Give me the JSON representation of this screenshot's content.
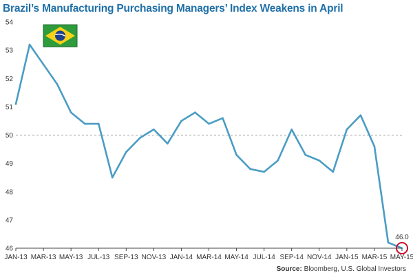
{
  "chart_data": {
    "type": "line",
    "title": "Brazil’s Manufacturing Purchasing Managers’ Index Weakens in April",
    "xlabel": "",
    "ylabel": "",
    "ylim": [
      46,
      54
    ],
    "yticks": [
      46,
      47,
      48,
      49,
      50,
      51,
      52,
      53,
      54
    ],
    "x": [
      "JAN-13",
      "FEB-13",
      "MAR-13",
      "APR-13",
      "MAY-13",
      "JUN-13",
      "JUL-13",
      "AUG-13",
      "SEP-13",
      "OCT-13",
      "NOV-13",
      "DEC-13",
      "JAN-14",
      "FEB-14",
      "MAR-14",
      "APR-14",
      "MAY-14",
      "JUN-14",
      "JUL-14",
      "AUG-14",
      "SEP-14",
      "OCT-14",
      "NOV-14",
      "DEC-14",
      "JAN-15",
      "FEB-15",
      "MAR-15",
      "APR-15",
      "MAY-15"
    ],
    "xtick_labels": [
      "JAN-13",
      "MAR-13",
      "MAY-13",
      "JUL-13",
      "SEP-13",
      "NOV-13",
      "JAN-14",
      "MAR-14",
      "MAY-14",
      "JUL-14",
      "SEP-14",
      "NOV-14",
      "JAN-15",
      "MAR-15",
      "MAY-15"
    ],
    "series": [
      {
        "values": [
          51.1,
          53.2,
          52.5,
          51.8,
          50.8,
          50.4,
          50.4,
          48.5,
          49.4,
          49.9,
          50.2,
          49.7,
          50.5,
          50.8,
          50.4,
          50.6,
          49.3,
          48.8,
          48.7,
          49.1,
          50.2,
          49.3,
          49.1,
          48.7,
          50.2,
          50.7,
          49.6,
          46.2,
          46.0
        ]
      }
    ],
    "reference_line": 50,
    "highlight": {
      "x": "MAY-15",
      "value": 46.0,
      "label": "46.0"
    },
    "grid": false,
    "legend": "none",
    "colors": {
      "line": "#4a9cc4",
      "title": "#1f6fa8",
      "highlight": "#c8102e",
      "reference": "#999999",
      "axis": "#444444"
    },
    "source_label": "Source:",
    "source_text": "Bloomberg, U.S. Global Investors",
    "flag_icon": "brazil-flag-icon"
  }
}
